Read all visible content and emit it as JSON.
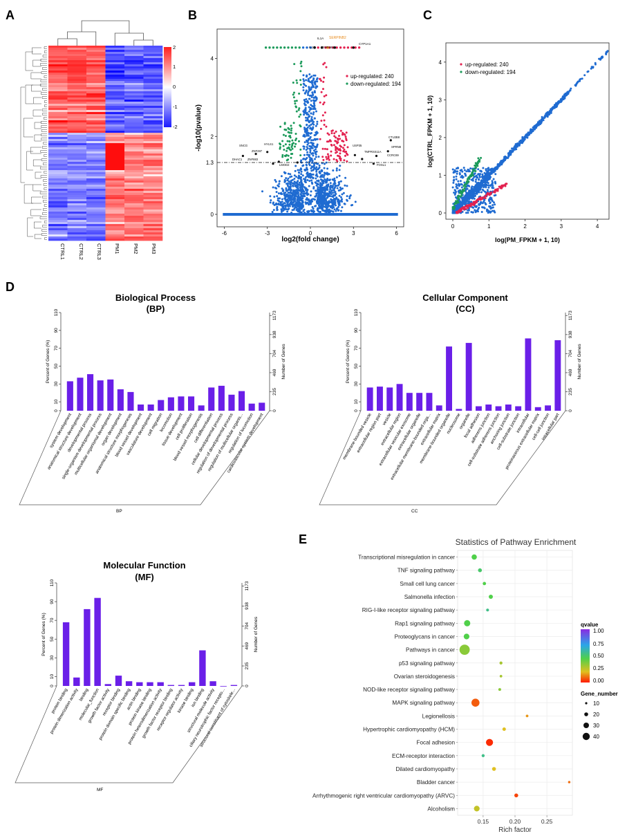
{
  "panels": {
    "A": "A",
    "B": "B",
    "C": "C",
    "D": "D",
    "E": "E"
  },
  "heatmap": {
    "samples": [
      "CTRL1",
      "CTRL2",
      "CTRL3",
      "PM1",
      "PM2",
      "PM3"
    ],
    "scale_ticks": [
      "2",
      "1",
      "0",
      "-1",
      "-2"
    ],
    "colors": {
      "high": "#ff1f1f",
      "mid": "#ffffff",
      "low": "#1a1aff"
    }
  },
  "volcano": {
    "ylabel": "-log10(pvalue)",
    "xlabel": "log2(fold change)",
    "threshold_label": "1.3",
    "legend": [
      "up-regulated: 240",
      "down-regulated: 194"
    ],
    "top_labels": [
      "IL1A",
      "IL1B",
      "SERPINB2",
      "DYP1B1",
      "CYP1A1"
    ],
    "gene_labels": [
      "SNCG",
      "ZNF287",
      "HYLS1",
      "DHAC1",
      "ZNF883",
      "LMOD2",
      "CTU2B8",
      "SPRN8",
      "USP35",
      "TMPRSS11A",
      "CCRC69",
      "FOSL1"
    ],
    "chart_data": {
      "type": "scatter",
      "xlim": [
        -6.5,
        6.5
      ],
      "ylim": [
        0,
        4.5
      ],
      "xticks": [
        -6,
        -3,
        0,
        3,
        6
      ],
      "yticks": [
        0,
        1.3,
        2,
        4
      ],
      "series": [
        {
          "name": "up-regulated",
          "count": 240,
          "color": "#e3214f"
        },
        {
          "name": "down-regulated",
          "count": 194,
          "color": "#1b9a5a"
        },
        {
          "name": "not significant",
          "color": "#1f6bd1"
        }
      ]
    }
  },
  "fpkm": {
    "xlabel": "log(PM_FPKM + 1, 10)",
    "ylabel": "log(CTRL_FPKM + 1, 10)",
    "legend": [
      "up-regulated: 240",
      "down-regulated: 194"
    ],
    "chart_data": {
      "type": "scatter",
      "xlim": [
        0,
        4.5
      ],
      "ylim": [
        0,
        4.5
      ],
      "xticks": [
        0,
        1,
        2,
        3,
        4
      ],
      "yticks": [
        0,
        1,
        2,
        3,
        4
      ]
    }
  },
  "go": {
    "left_axis": "Percent of Genes (%)",
    "right_axis": "Number of Genes",
    "left_ticks": [
      "0",
      "10",
      "30",
      "50",
      "70",
      "90",
      "110"
    ],
    "right_ticks": [
      "0",
      "235",
      "469",
      "704",
      "938",
      "1173"
    ],
    "bp": {
      "title1": "Biological Process",
      "title2": "(BP)",
      "footer": "BP",
      "chart_data": {
        "type": "bar",
        "ylim": [
          0,
          110
        ],
        "categories": [
          "system development",
          "anatomical structure development",
          "developmental process",
          "single-organism developmental process",
          "multicellular organismal development",
          "organ development",
          "anatomical structure morphogenesis",
          "blood vessel development",
          "vasculature development",
          "cell migration",
          "locomotion",
          "tissue development",
          "cell proliferation",
          "blood vessel morphogenesis",
          "cell differentiation",
          "cellular developmental process",
          "regulation of developmental process",
          "regulation of multicellular organis...",
          "regulation of locomotion",
          "cardiovascular system development"
        ],
        "values": [
          33,
          37,
          41,
          34,
          35,
          24,
          21,
          7,
          7,
          12,
          15,
          16,
          16,
          6,
          26,
          28,
          18,
          22,
          8,
          9
        ]
      }
    },
    "cc": {
      "title1": "Cellular Component",
      "title2": "(CC)",
      "footer": "CC",
      "chart_data": {
        "type": "bar",
        "ylim": [
          0,
          110
        ],
        "categories": [
          "membrane-bounded vesicle",
          "extracellular region part",
          "vesicle",
          "extracellular region",
          "extracellular vesicular exosome",
          "extracellular organelle",
          "extracellular membrane-bounded orga...",
          "extracellular matrix",
          "membrane-bounded organelle",
          "nucleosome",
          "organelle",
          "focal adhesion",
          "adherens junction",
          "cell-substrate adherens junction",
          "anchoring junction",
          "cell-substrate junction",
          "intracellular",
          "proteinaceous extracellular matrix",
          "cell-cell junction",
          "intracellular part"
        ],
        "values": [
          26,
          27,
          26,
          30,
          20,
          20,
          20,
          6,
          72,
          2,
          76,
          5,
          7,
          5,
          7,
          5,
          81,
          4,
          6,
          79
        ]
      }
    },
    "mf": {
      "title1": "Molecular Function",
      "title2": "(MF)",
      "footer": "MF",
      "chart_data": {
        "type": "bar",
        "ylim": [
          0,
          110
        ],
        "categories": [
          "protein binding",
          "protein dimerization activity",
          "binding",
          "molecular_function",
          "growth factor activity",
          "receptor binding",
          "protein domain specific binding",
          "actin binding",
          "protein kinase binding",
          "protein heterodimerization activity",
          "growth factor receptor binding",
          "receptor regulator activity",
          "kinase binding",
          "ion binding",
          "structural molecule activity",
          "ciliary neurotrophic factor recepto...",
          "structural constituent of cytoskele..."
        ],
        "values": [
          68,
          9,
          82,
          94,
          2,
          11,
          5,
          4,
          4,
          4,
          1,
          1,
          4,
          38,
          5,
          0,
          1
        ]
      }
    }
  },
  "kegg": {
    "title": "Statistics of Pathway Enrichment",
    "xlabel": "Rich factor",
    "legend_qvalue_title": "qvalue",
    "legend_qvalue_ticks": [
      "1.00",
      "0.75",
      "0.50",
      "0.25",
      "0.00"
    ],
    "legend_size_title": "Gene_number",
    "legend_size_ticks": [
      "10",
      "20",
      "30",
      "40"
    ],
    "chart_data": {
      "type": "scatter",
      "xlim": [
        0.11,
        0.29
      ],
      "xticks": [
        0.15,
        0.2,
        0.25
      ],
      "xticklabels": [
        "0.15",
        "0.20",
        "0.25"
      ],
      "categories": [
        "Transcriptional misregulation in cancer",
        "TNF signaling pathway",
        "Small cell lung cancer",
        "Salmonella infection",
        "RIG-I-like receptor signaling pathway",
        "Rap1 signaling pathway",
        "Proteoglycans in cancer",
        "Pathways in cancer",
        "p53 signaling pathway",
        "Ovarian steroidogenesis",
        "NOD-like receptor signaling pathway",
        "MAPK signaling pathway",
        "Legionellosis",
        "Hypertrophic cardiomyopathy (HCM)",
        "Focal adhesion",
        "ECM-receptor interaction",
        "Dilated cardiomyopathy",
        "Bladder cancer",
        "Arrhythmogenic right ventricular cardiomyopathy (ARVC)",
        "Alcoholism"
      ],
      "rich_factor": [
        0.136,
        0.145,
        0.152,
        0.162,
        0.157,
        0.125,
        0.124,
        0.121,
        0.178,
        0.178,
        0.176,
        0.138,
        0.219,
        0.183,
        0.16,
        0.15,
        0.167,
        0.285,
        0.202,
        0.14
      ],
      "qvalue": [
        0.45,
        0.5,
        0.45,
        0.45,
        0.55,
        0.45,
        0.45,
        0.35,
        0.3,
        0.3,
        0.35,
        0.08,
        0.15,
        0.2,
        0.02,
        0.55,
        0.2,
        0.1,
        0.05,
        0.25
      ],
      "gene_number": [
        20,
        12,
        9,
        14,
        7,
        25,
        22,
        48,
        8,
        5,
        6,
        35,
        5,
        10,
        30,
        8,
        12,
        4,
        12,
        22
      ]
    }
  }
}
